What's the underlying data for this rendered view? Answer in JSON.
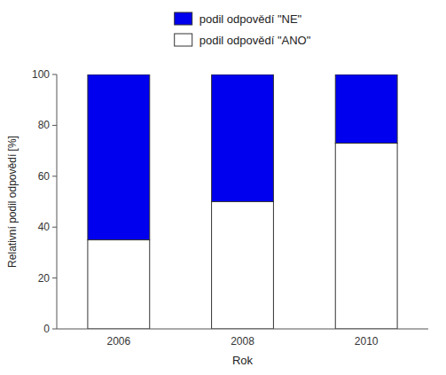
{
  "chart_data": {
    "type": "bar",
    "stacked": true,
    "categories": [
      "2006",
      "2008",
      "2010"
    ],
    "series": [
      {
        "name": "podil odpovědí \"ANO\"",
        "color": "#ffffff",
        "values": [
          35,
          50,
          73
        ]
      },
      {
        "name": "podil odpovědí \"NE\"",
        "color": "#0000ee",
        "values": [
          65,
          50,
          27
        ]
      }
    ],
    "xlabel": "Rok",
    "ylabel": "Relativní podil odpovědí [%]",
    "ylim": [
      0,
      100
    ],
    "yticks": [
      0,
      20,
      40,
      60,
      80,
      100
    ],
    "grid": false,
    "legend": "top"
  }
}
